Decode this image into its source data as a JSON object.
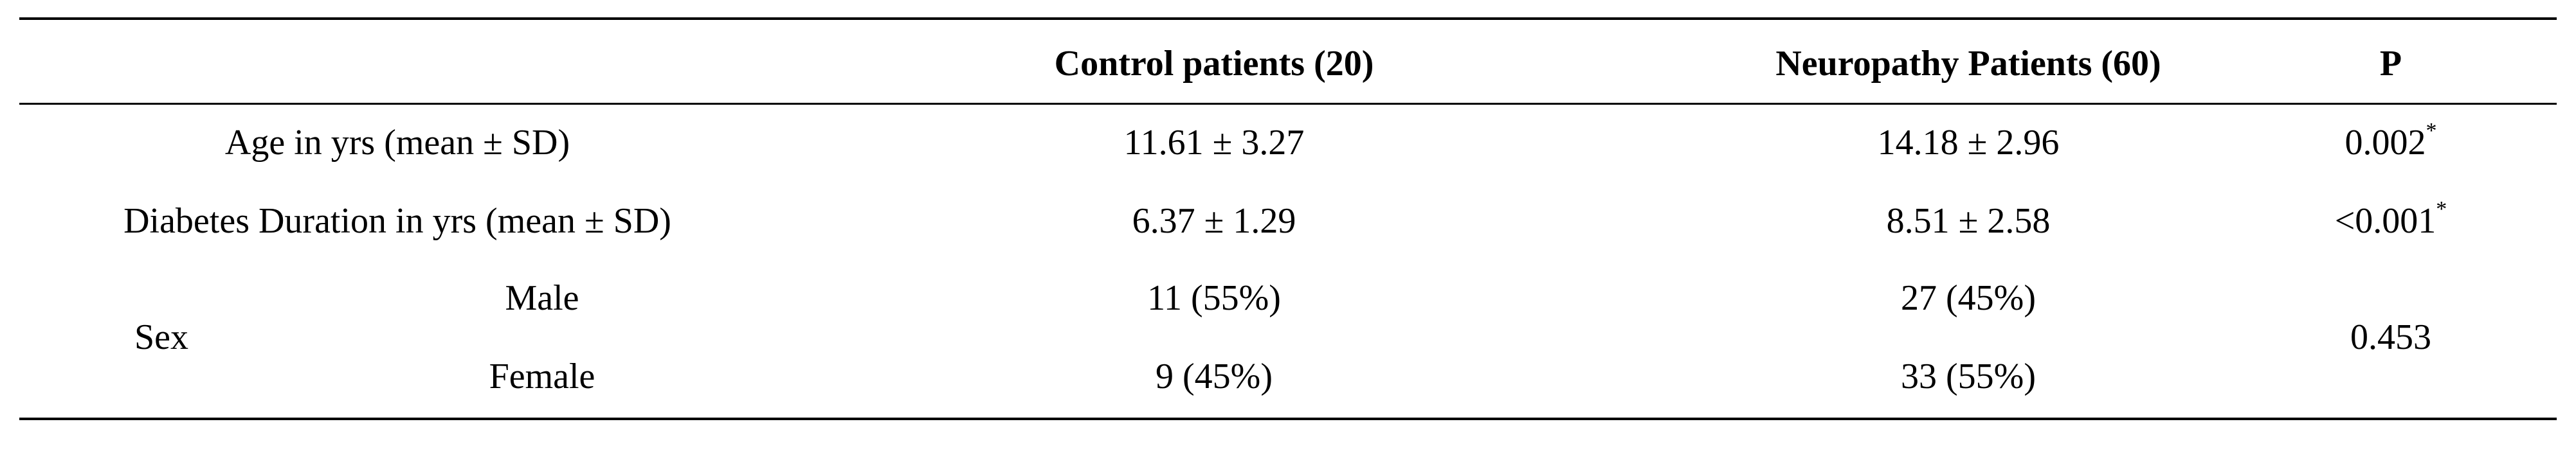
{
  "table": {
    "headers": {
      "blank": "",
      "control": "Control patients (20)",
      "neuropathy": "Neuropathy Patients (60)",
      "p": "P"
    },
    "rows": [
      {
        "label": "Age in yrs (mean ± SD)",
        "control": "11.61 ± 3.27",
        "neuropathy": "14.18 ± 2.96",
        "p": "0.002",
        "p_mark": "*"
      },
      {
        "label": "Diabetes Duration in yrs (mean ± SD)",
        "control": "6.37 ± 1.29",
        "neuropathy": "8.51 ± 2.58",
        "p": "<0.001",
        "p_mark": "*"
      }
    ],
    "sex": {
      "label": "Sex",
      "male_label": "Male",
      "female_label": "Female",
      "male_control": "11 (55%)",
      "male_neuropathy": "27 (45%)",
      "female_control": "9 (45%)",
      "female_neuropathy": "33 (55%)",
      "p": "0.453"
    }
  }
}
